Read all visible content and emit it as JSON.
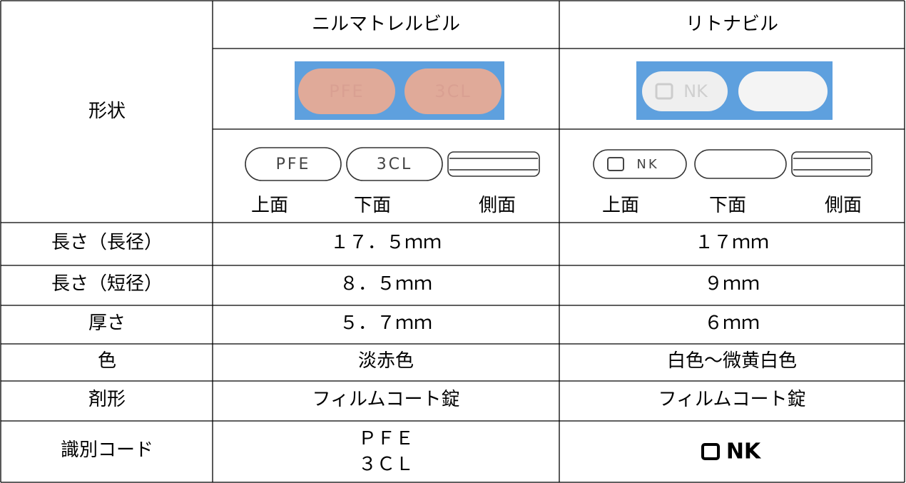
{
  "table": {
    "header": [
      "ニルマトレルビル",
      "リトナビル"
    ],
    "shape_label": "形状",
    "pill_marks": [
      [
        "PFE",
        "3CL"
      ],
      [
        "NK"
      ]
    ],
    "view_labels": [
      [
        "上面",
        "下面",
        "側面"
      ],
      [
        "上面",
        "下面",
        "側面"
      ]
    ],
    "rows": [
      [
        "長さ（長径）",
        "１７．５ｍｍ",
        "１７ｍｍ"
      ],
      [
        "長さ（短径）",
        "８．５ｍｍ",
        "９ｍｍ"
      ],
      [
        "厚さ",
        "５．７ｍｍ",
        "６ｍｍ"
      ],
      [
        "色",
        "淡赤色",
        "白色～微黄白色"
      ],
      [
        "剤形",
        "フィルムコート錠",
        "フィルムコート錠"
      ]
    ],
    "id_code": {
      "label": "識別コード",
      "nirmatrelvir": [
        "ＰＦＥ",
        "３ＣＬ"
      ],
      "ritonavir": "NK"
    }
  }
}
